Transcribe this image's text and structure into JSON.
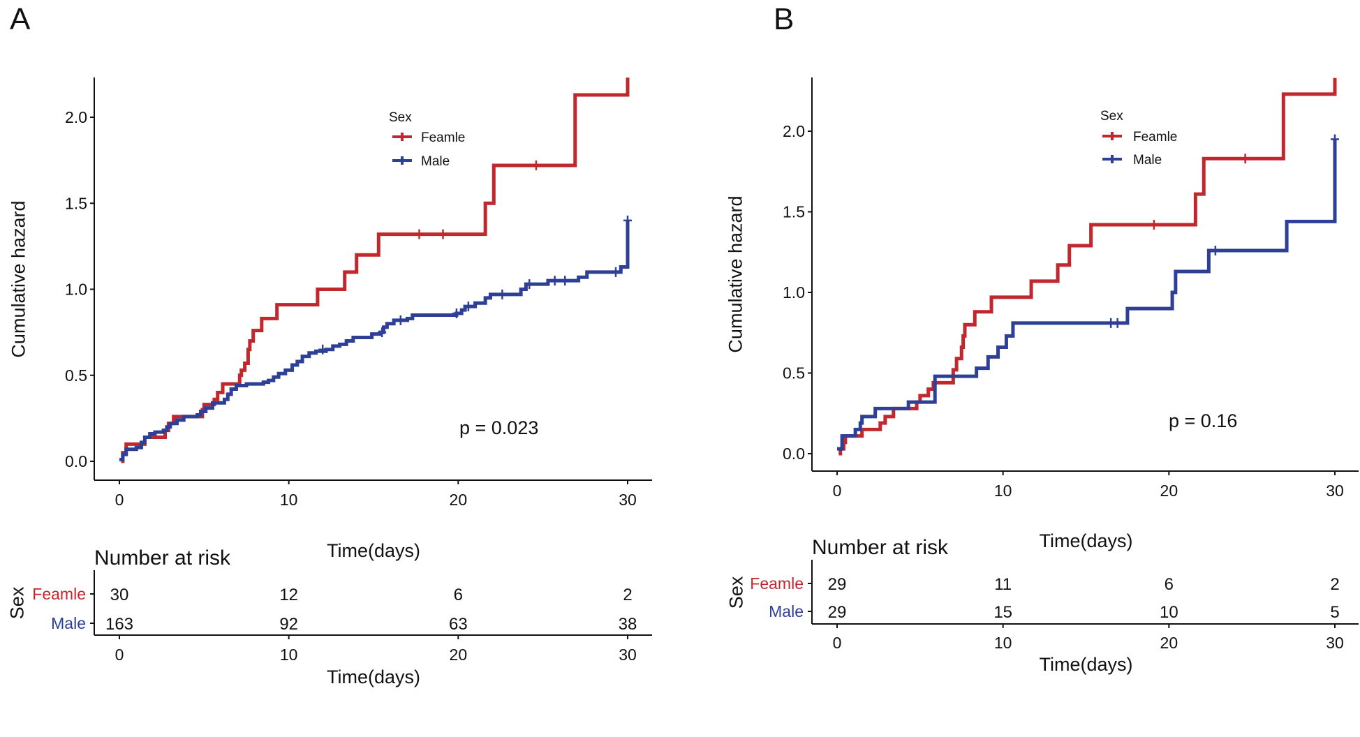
{
  "colors": {
    "female": "#c0282d",
    "male": "#2e3f96",
    "axis": "#111111"
  },
  "chart_data": [
    {
      "panel_label": "A",
      "type": "line",
      "step": true,
      "xlabel": "Time(days)",
      "ylabel": "Cumulative hazard",
      "xlim": [
        0,
        30
      ],
      "ylim": [
        0,
        2.23
      ],
      "xticks": [
        "0",
        "10",
        "20",
        "30"
      ],
      "yticks": [
        "0.0",
        "0.5",
        "1.0",
        "1.5",
        "2.0"
      ],
      "legend": {
        "title": "Sex",
        "position": "top-center"
      },
      "annotation": "p = 0.023",
      "series": [
        {
          "name": "Feamle",
          "color_key": "female",
          "points": [
            [
              0.1,
              0
            ],
            [
              0.2,
              0.05
            ],
            [
              0.4,
              0.1
            ],
            [
              1.5,
              0.14
            ],
            [
              2.7,
              0.18
            ],
            [
              2.9,
              0.22
            ],
            [
              3.2,
              0.26
            ],
            [
              4.9,
              0.3
            ],
            [
              5.0,
              0.33
            ],
            [
              5.6,
              0.36
            ],
            [
              5.8,
              0.4
            ],
            [
              6.1,
              0.45
            ],
            [
              7.1,
              0.5
            ],
            [
              7.2,
              0.53
            ],
            [
              7.4,
              0.57
            ],
            [
              7.6,
              0.65
            ],
            [
              7.7,
              0.7
            ],
            [
              7.9,
              0.76
            ],
            [
              8.4,
              0.83
            ],
            [
              9.3,
              0.91
            ],
            [
              11.7,
              1.0
            ],
            [
              13.3,
              1.1
            ],
            [
              14.0,
              1.2
            ],
            [
              15.3,
              1.32
            ],
            [
              21.6,
              1.5
            ],
            [
              22.1,
              1.72
            ],
            [
              26.9,
              2.13
            ],
            [
              30,
              2.23
            ]
          ],
          "censored": [
            [
              17.7,
              1.32
            ],
            [
              19.1,
              1.32
            ],
            [
              24.6,
              1.72
            ]
          ]
        },
        {
          "name": "Male",
          "color_key": "male",
          "points": [
            [
              0,
              0.01
            ],
            [
              0.2,
              0.04
            ],
            [
              0.4,
              0.07
            ],
            [
              1.0,
              0.08
            ],
            [
              1.3,
              0.11
            ],
            [
              1.5,
              0.14
            ],
            [
              1.8,
              0.16
            ],
            [
              2.1,
              0.17
            ],
            [
              2.6,
              0.18
            ],
            [
              2.8,
              0.2
            ],
            [
              3.0,
              0.22
            ],
            [
              3.4,
              0.24
            ],
            [
              3.8,
              0.26
            ],
            [
              4.6,
              0.27
            ],
            [
              4.8,
              0.29
            ],
            [
              5.1,
              0.31
            ],
            [
              5.5,
              0.34
            ],
            [
              6.2,
              0.36
            ],
            [
              6.4,
              0.39
            ],
            [
              6.6,
              0.42
            ],
            [
              6.9,
              0.44
            ],
            [
              7.5,
              0.45
            ],
            [
              8.5,
              0.46
            ],
            [
              8.8,
              0.47
            ],
            [
              9.1,
              0.49
            ],
            [
              9.4,
              0.51
            ],
            [
              9.8,
              0.53
            ],
            [
              10.2,
              0.56
            ],
            [
              10.5,
              0.58
            ],
            [
              10.8,
              0.61
            ],
            [
              11.2,
              0.63
            ],
            [
              11.6,
              0.64
            ],
            [
              12.2,
              0.65
            ],
            [
              12.6,
              0.67
            ],
            [
              13.0,
              0.68
            ],
            [
              13.4,
              0.7
            ],
            [
              13.8,
              0.72
            ],
            [
              14.9,
              0.74
            ],
            [
              15.4,
              0.75
            ],
            [
              15.6,
              0.78
            ],
            [
              15.8,
              0.8
            ],
            [
              16.2,
              0.82
            ],
            [
              17.0,
              0.83
            ],
            [
              17.3,
              0.85
            ],
            [
              19.9,
              0.86
            ],
            [
              20.2,
              0.88
            ],
            [
              20.4,
              0.9
            ],
            [
              21.0,
              0.92
            ],
            [
              21.6,
              0.95
            ],
            [
              21.9,
              0.97
            ],
            [
              23.7,
              1.0
            ],
            [
              24.0,
              1.03
            ],
            [
              25.3,
              1.05
            ],
            [
              27.1,
              1.07
            ],
            [
              27.6,
              1.1
            ],
            [
              29.6,
              1.13
            ],
            [
              30,
              1.4
            ]
          ],
          "censored": [
            [
              12.0,
              0.65
            ],
            [
              15.5,
              0.75
            ],
            [
              16.6,
              0.82
            ],
            [
              19.9,
              0.86
            ],
            [
              20.6,
              0.9
            ],
            [
              22.6,
              0.97
            ],
            [
              24.2,
              1.03
            ],
            [
              25.7,
              1.05
            ],
            [
              26.3,
              1.05
            ],
            [
              29.3,
              1.1
            ],
            [
              30,
              1.4
            ]
          ]
        }
      ],
      "risk_table": {
        "title": "Number at risk",
        "group_label": "Sex",
        "times": [
          "0",
          "10",
          "20",
          "30"
        ],
        "xlabel": "Time(days)",
        "rows": [
          {
            "name": "Feamle",
            "color_key": "female",
            "values": [
              "30",
              "12",
              "6",
              "2"
            ]
          },
          {
            "name": "Male",
            "color_key": "male",
            "values": [
              "163",
              "92",
              "63",
              "38"
            ]
          }
        ]
      }
    },
    {
      "panel_label": "B",
      "type": "line",
      "step": true,
      "xlabel": "Time(days)",
      "ylabel": "Cumulative hazard",
      "xlim": [
        0,
        30
      ],
      "ylim": [
        0,
        2.33
      ],
      "xticks": [
        "0",
        "10",
        "20",
        "30"
      ],
      "yticks": [
        "0.0",
        "0.5",
        "1.0",
        "1.5",
        "2.0"
      ],
      "legend": {
        "title": "Sex",
        "position": "top-center"
      },
      "annotation": "p = 0.16",
      "series": [
        {
          "name": "Feamle",
          "color_key": "female",
          "points": [
            [
              0.1,
              0
            ],
            [
              0.2,
              0.03
            ],
            [
              0.4,
              0.07
            ],
            [
              0.5,
              0.11
            ],
            [
              1.5,
              0.15
            ],
            [
              2.6,
              0.19
            ],
            [
              2.9,
              0.23
            ],
            [
              3.4,
              0.28
            ],
            [
              4.8,
              0.32
            ],
            [
              5.0,
              0.36
            ],
            [
              5.5,
              0.4
            ],
            [
              5.8,
              0.44
            ],
            [
              7.0,
              0.52
            ],
            [
              7.2,
              0.59
            ],
            [
              7.5,
              0.66
            ],
            [
              7.6,
              0.73
            ],
            [
              7.7,
              0.8
            ],
            [
              8.3,
              0.88
            ],
            [
              9.3,
              0.97
            ],
            [
              11.7,
              1.07
            ],
            [
              13.3,
              1.17
            ],
            [
              14.0,
              1.29
            ],
            [
              15.3,
              1.42
            ],
            [
              21.6,
              1.61
            ],
            [
              22.1,
              1.83
            ],
            [
              26.9,
              2.23
            ],
            [
              30,
              2.33
            ]
          ],
          "censored": [
            [
              19.1,
              1.42
            ],
            [
              24.6,
              1.83
            ]
          ]
        },
        {
          "name": "Male",
          "color_key": "male",
          "points": [
            [
              0,
              0.03
            ],
            [
              0.1,
              0.03
            ],
            [
              0.3,
              0.11
            ],
            [
              1.1,
              0.15
            ],
            [
              1.4,
              0.19
            ],
            [
              1.5,
              0.23
            ],
            [
              2.3,
              0.28
            ],
            [
              4.3,
              0.32
            ],
            [
              5.9,
              0.48
            ],
            [
              8.4,
              0.53
            ],
            [
              9.1,
              0.6
            ],
            [
              9.7,
              0.66
            ],
            [
              10.2,
              0.73
            ],
            [
              10.6,
              0.81
            ],
            [
              17.5,
              0.9
            ],
            [
              20.2,
              1.0
            ],
            [
              20.4,
              1.13
            ],
            [
              22.4,
              1.26
            ],
            [
              27.1,
              1.44
            ],
            [
              30,
              1.95
            ]
          ],
          "censored": [
            [
              16.5,
              0.81
            ],
            [
              16.9,
              0.81
            ],
            [
              22.8,
              1.26
            ],
            [
              30,
              1.95
            ]
          ]
        }
      ],
      "risk_table": {
        "title": "Number at risk",
        "group_label": "Sex",
        "times": [
          "0",
          "10",
          "20",
          "30"
        ],
        "xlabel": "Time(days)",
        "rows": [
          {
            "name": "Feamle",
            "color_key": "female",
            "values": [
              "29",
              "11",
              "6",
              "2"
            ]
          },
          {
            "name": "Male",
            "color_key": "male",
            "values": [
              "29",
              "15",
              "10",
              "5"
            ]
          }
        ]
      }
    }
  ]
}
